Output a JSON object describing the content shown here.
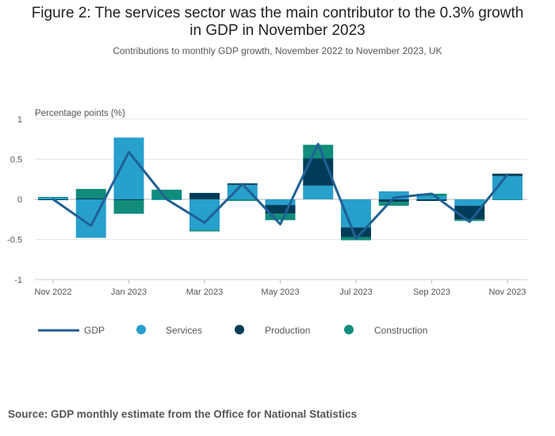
{
  "title_line1": "Figure 2: The services sector was the main contributor to the 0.3% growth",
  "title_line2": "in GDP in November 2023",
  "subtitle": "Contributions to monthly GDP growth, November 2022 to November 2023, UK",
  "source": "Source: GDP monthly estimate from the Office for National Statistics",
  "colors": {
    "gdp": "#206095",
    "services": "#27a0cc",
    "production": "#003c57",
    "construction": "#118c7b",
    "grid": "#e6e6e6",
    "zero": "#bbbbbb"
  },
  "chart_data": {
    "type": "bar",
    "stacked": true,
    "ylabel": "Percentage points (%)",
    "ylim": [
      -1,
      1
    ],
    "yticks": [
      "1",
      "0.5",
      "0",
      "-0.5",
      "-1"
    ],
    "ytick_values": [
      1,
      0.5,
      0,
      -0.5,
      -1
    ],
    "categories": [
      "Nov 2022",
      "Dec 2022",
      "Jan 2023",
      "Feb 2023",
      "Mar 2023",
      "Apr 2023",
      "May 2023",
      "Jun 2023",
      "Jul 2023",
      "Aug 2023",
      "Sep 2023",
      "Oct 2023",
      "Nov 2023"
    ],
    "xtick_labels": [
      "Nov 2022",
      "Jan 2023",
      "Mar 2023",
      "May 2023",
      "Jul 2023",
      "Sep 2023",
      "Nov 2023"
    ],
    "xtick_indices": [
      0,
      2,
      4,
      6,
      8,
      10,
      12
    ],
    "series": [
      {
        "name": "Services",
        "key": "services",
        "values": [
          0.02,
          -0.48,
          0.77,
          -0.01,
          -0.38,
          0.18,
          -0.07,
          0.17,
          -0.35,
          0.1,
          0.04,
          -0.08,
          0.29
        ]
      },
      {
        "name": "Production",
        "key": "production",
        "values": [
          -0.01,
          0.01,
          -0.01,
          0.0,
          0.08,
          0.02,
          -0.11,
          0.34,
          -0.12,
          -0.03,
          -0.02,
          -0.17,
          0.03
        ]
      },
      {
        "name": "Construction",
        "key": "construction",
        "values": [
          0.01,
          0.12,
          -0.17,
          0.12,
          -0.02,
          -0.02,
          -0.08,
          0.17,
          -0.04,
          -0.05,
          0.03,
          -0.02,
          -0.01
        ]
      }
    ],
    "line": {
      "name": "GDP",
      "values": [
        0.0,
        -0.33,
        0.59,
        0.0,
        -0.29,
        0.19,
        -0.31,
        0.69,
        -0.49,
        0.02,
        0.07,
        -0.28,
        0.31
      ]
    },
    "legend": [
      "GDP",
      "Services",
      "Production",
      "Construction"
    ],
    "legend_position": "bottom-left",
    "grid": true
  }
}
